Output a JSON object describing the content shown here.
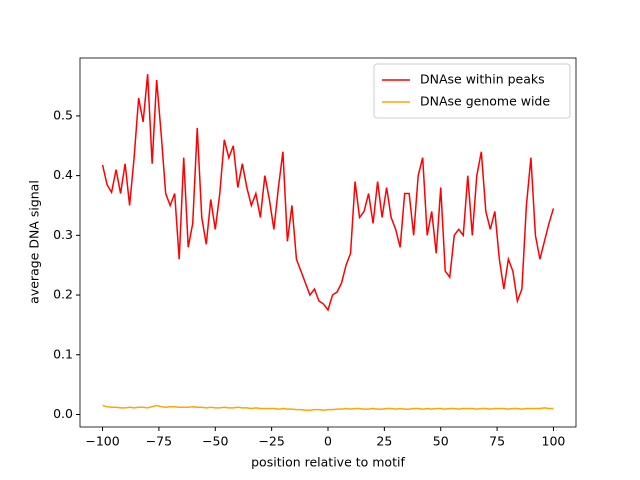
{
  "chart_data": {
    "type": "line",
    "xlabel": "position relative to motif",
    "ylabel": "average DNA signal",
    "x": [
      -100,
      -98,
      -96,
      -94,
      -92,
      -90,
      -88,
      -86,
      -84,
      -82,
      -80,
      -78,
      -76,
      -74,
      -72,
      -70,
      -68,
      -66,
      -64,
      -62,
      -60,
      -58,
      -56,
      -54,
      -52,
      -50,
      -48,
      -46,
      -44,
      -42,
      -40,
      -38,
      -36,
      -34,
      -32,
      -30,
      -28,
      -26,
      -24,
      -22,
      -20,
      -18,
      -16,
      -14,
      -12,
      -10,
      -8,
      -6,
      -4,
      -2,
      0,
      2,
      4,
      6,
      8,
      10,
      12,
      14,
      16,
      18,
      20,
      22,
      24,
      26,
      28,
      30,
      32,
      34,
      36,
      38,
      40,
      42,
      44,
      46,
      48,
      50,
      52,
      54,
      56,
      58,
      60,
      62,
      64,
      66,
      68,
      70,
      72,
      74,
      76,
      78,
      80,
      82,
      84,
      86,
      88,
      90,
      92,
      94,
      96,
      98,
      100
    ],
    "series": [
      {
        "name": "DNAse within peaks",
        "color": "#ff0000",
        "values": [
          0.418,
          0.385,
          0.372,
          0.41,
          0.37,
          0.42,
          0.35,
          0.43,
          0.53,
          0.49,
          0.57,
          0.42,
          0.56,
          0.47,
          0.37,
          0.35,
          0.37,
          0.26,
          0.43,
          0.28,
          0.32,
          0.48,
          0.33,
          0.285,
          0.36,
          0.31,
          0.37,
          0.46,
          0.43,
          0.45,
          0.38,
          0.42,
          0.38,
          0.35,
          0.37,
          0.33,
          0.4,
          0.36,
          0.31,
          0.38,
          0.44,
          0.29,
          0.35,
          0.26,
          0.24,
          0.22,
          0.2,
          0.21,
          0.19,
          0.185,
          0.175,
          0.2,
          0.205,
          0.22,
          0.25,
          0.27,
          0.39,
          0.33,
          0.34,
          0.37,
          0.32,
          0.39,
          0.33,
          0.38,
          0.33,
          0.31,
          0.28,
          0.37,
          0.37,
          0.3,
          0.4,
          0.43,
          0.3,
          0.34,
          0.27,
          0.38,
          0.24,
          0.23,
          0.3,
          0.31,
          0.3,
          0.4,
          0.3,
          0.4,
          0.44,
          0.34,
          0.31,
          0.34,
          0.26,
          0.21,
          0.26,
          0.24,
          0.19,
          0.21,
          0.35,
          0.43,
          0.3,
          0.26,
          0.29,
          0.32,
          0.345
        ]
      },
      {
        "name": "DNAse genome wide",
        "color": "#ffa500",
        "values": [
          0.015,
          0.013,
          0.012,
          0.012,
          0.011,
          0.011,
          0.012,
          0.011,
          0.012,
          0.012,
          0.011,
          0.013,
          0.015,
          0.013,
          0.012,
          0.013,
          0.013,
          0.012,
          0.012,
          0.012,
          0.013,
          0.012,
          0.012,
          0.011,
          0.012,
          0.011,
          0.011,
          0.012,
          0.011,
          0.011,
          0.012,
          0.011,
          0.011,
          0.01,
          0.011,
          0.01,
          0.01,
          0.01,
          0.01,
          0.009,
          0.01,
          0.009,
          0.009,
          0.008,
          0.008,
          0.007,
          0.007,
          0.008,
          0.008,
          0.007,
          0.008,
          0.008,
          0.009,
          0.009,
          0.01,
          0.009,
          0.01,
          0.01,
          0.009,
          0.009,
          0.01,
          0.009,
          0.009,
          0.01,
          0.01,
          0.009,
          0.01,
          0.009,
          0.009,
          0.01,
          0.01,
          0.009,
          0.01,
          0.009,
          0.01,
          0.01,
          0.009,
          0.01,
          0.01,
          0.009,
          0.01,
          0.01,
          0.01,
          0.009,
          0.01,
          0.01,
          0.009,
          0.01,
          0.01,
          0.01,
          0.009,
          0.01,
          0.01,
          0.009,
          0.01,
          0.01,
          0.01,
          0.01,
          0.011,
          0.01,
          0.01
        ]
      }
    ],
    "xlim": [
      -110,
      110
    ],
    "xticks": [
      {
        "value": -100,
        "label": "−100"
      },
      {
        "value": -75,
        "label": "−75"
      },
      {
        "value": -50,
        "label": "−50"
      },
      {
        "value": -25,
        "label": "−25"
      },
      0,
      25,
      50,
      75,
      100
    ],
    "ylim": [
      -0.021,
      0.597
    ],
    "yticks": [
      {
        "value": 0,
        "label": "0.0"
      },
      0.1,
      0.2,
      0.3,
      0.4,
      0.5
    ],
    "legend": "upper right",
    "grid": false
  }
}
